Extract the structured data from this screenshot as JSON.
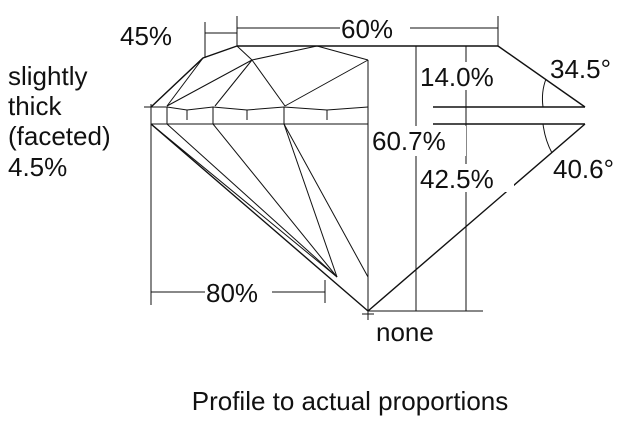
{
  "labels": {
    "crown_height_pct": "45%",
    "table_pct": "60%",
    "girdle_line1": "slightly",
    "girdle_line2": "thick",
    "girdle_line3": "(faceted)",
    "girdle_value": "4.5%",
    "crown_depth": "14.0%",
    "crown_angle": "34.5°",
    "total_depth": "60.7%",
    "pavilion_depth": "42.5%",
    "pavilion_angle": "40.6°",
    "lower_half_pct": "80%",
    "culet": "none"
  },
  "caption": "Profile to actual proportions"
}
